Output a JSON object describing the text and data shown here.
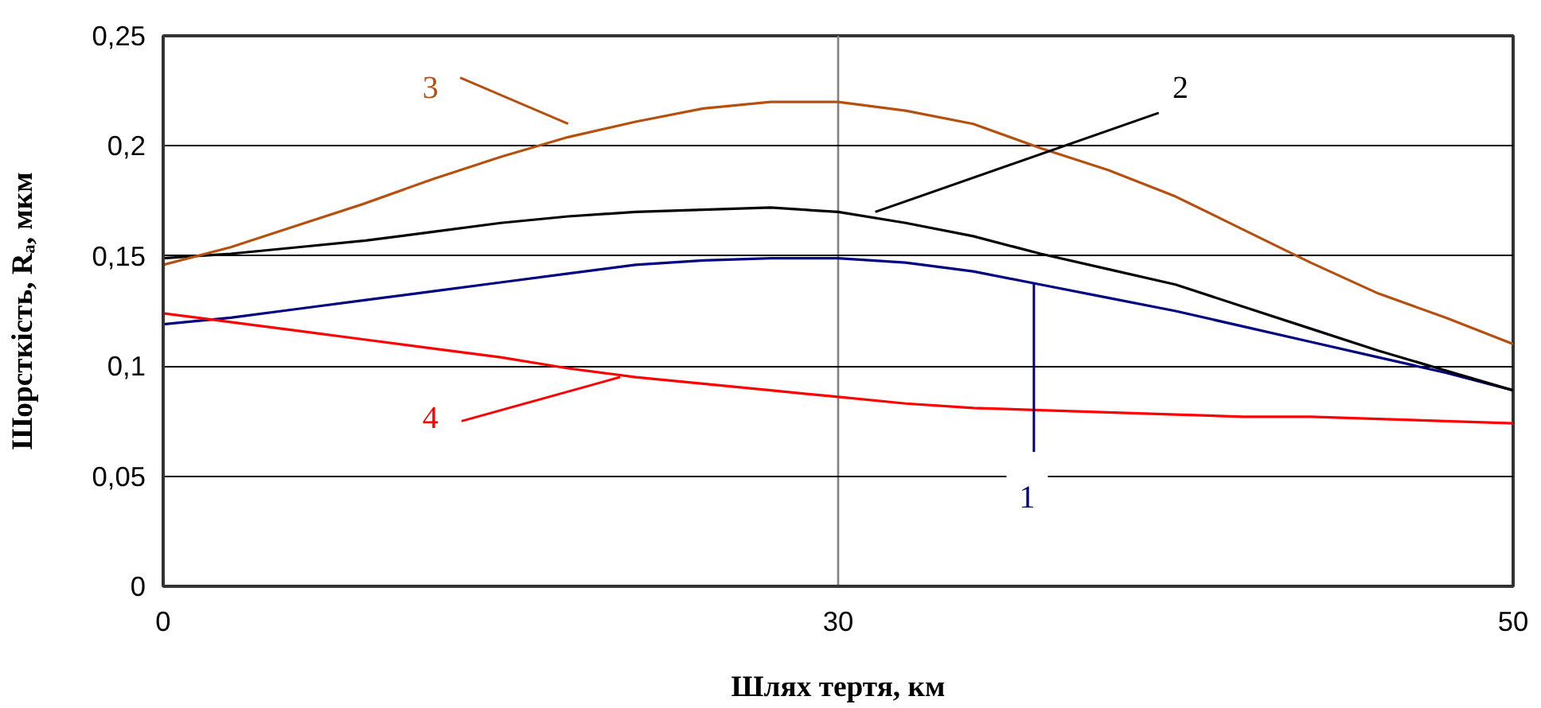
{
  "chart_data": {
    "type": "line",
    "xlabel": "Шлях тертя, км",
    "ylabel": "Шорсткість, Rₐ, мкм",
    "categories": [
      "0",
      null,
      null,
      null,
      null,
      null,
      null,
      null,
      null,
      null,
      "30",
      null,
      null,
      null,
      null,
      null,
      null,
      null,
      null,
      null,
      "50"
    ],
    "series": [
      {
        "name": "1",
        "color": "#000080",
        "values": [
          0.119,
          0.122,
          0.126,
          0.13,
          0.134,
          0.138,
          0.142,
          0.146,
          0.148,
          0.149,
          0.149,
          0.147,
          0.143,
          0.137,
          0.131,
          0.125,
          0.118,
          0.111,
          0.104,
          0.097,
          0.089
        ]
      },
      {
        "name": "2",
        "color": "#000000",
        "values": [
          0.149,
          0.151,
          0.154,
          0.157,
          0.161,
          0.165,
          0.168,
          0.17,
          0.171,
          0.172,
          0.17,
          0.165,
          0.159,
          0.151,
          0.144,
          0.137,
          0.127,
          0.117,
          0.107,
          0.098,
          0.089
        ]
      },
      {
        "name": "3",
        "color": "#b5500f",
        "values": [
          0.146,
          0.154,
          0.164,
          0.174,
          0.185,
          0.195,
          0.204,
          0.211,
          0.217,
          0.22,
          0.22,
          0.216,
          0.21,
          0.199,
          0.189,
          0.177,
          0.162,
          0.147,
          0.133,
          0.122,
          0.11
        ]
      },
      {
        "name": "4",
        "color": "#ff0000",
        "values": [
          0.124,
          0.12,
          0.116,
          0.112,
          0.108,
          0.104,
          0.099,
          0.095,
          0.092,
          0.089,
          0.086,
          0.083,
          0.081,
          0.08,
          0.079,
          0.078,
          0.077,
          0.077,
          0.076,
          0.075,
          0.074
        ]
      }
    ],
    "ylim": [
      0,
      0.25
    ],
    "yticks": [
      0,
      {
        "value": 0.05,
        "label": "0,05"
      },
      {
        "value": 0.1,
        "label": "0,1"
      },
      {
        "value": 0.15,
        "label": "0,15"
      },
      {
        "value": 0.2,
        "label": "0,2"
      },
      {
        "value": 0.25,
        "label": "0,25"
      }
    ],
    "grid": true,
    "legend": "left",
    "marker": "none",
    "line_style": "solid"
  }
}
